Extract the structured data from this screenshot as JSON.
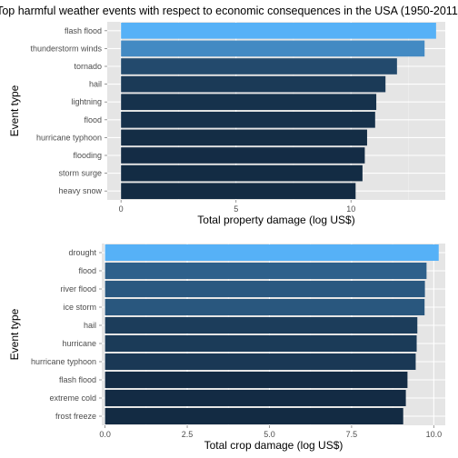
{
  "title": "Top harmful weather events with respect to economic consequences in the USA (1950-2011)",
  "colors": {
    "panel": "#e5e5e5",
    "grid": "#ffffff",
    "bar_low": "#132b43",
    "bar_high": "#56b1f7"
  },
  "chart_data": [
    {
      "type": "bar",
      "orientation": "horizontal",
      "ylabel": "Event type",
      "xlabel": "Total property damage (log US$)",
      "xlim": [
        -0.6,
        14.1
      ],
      "xticks": [
        0,
        5,
        10
      ],
      "xtick_labels": [
        "0",
        "5",
        "10"
      ],
      "categories": [
        "flash flood",
        "thunderstorm winds",
        "tornado",
        "hail",
        "lightning",
        "flood",
        "hurricane typhoon",
        "flooding",
        "storm surge",
        "heavy snow"
      ],
      "values": [
        13.7,
        13.2,
        12.0,
        11.5,
        11.1,
        11.05,
        10.7,
        10.6,
        10.5,
        10.2
      ]
    },
    {
      "type": "bar",
      "orientation": "horizontal",
      "ylabel": "Event type",
      "xlabel": "Total crop damage (log US$)",
      "xlim": [
        -0.1,
        10.35
      ],
      "xticks": [
        0,
        2.5,
        5,
        7.5,
        10
      ],
      "xtick_labels": [
        "0.0",
        "2.5",
        "5.0",
        "7.5",
        "10.0"
      ],
      "categories": [
        "drought",
        "flood",
        "river flood",
        "ice storm",
        "hail",
        "hurricane",
        "hurricane typhoon",
        "flash flood",
        "extreme cold",
        "frost freeze"
      ],
      "values": [
        10.15,
        9.78,
        9.73,
        9.72,
        9.5,
        9.48,
        9.45,
        9.2,
        9.15,
        9.07
      ]
    }
  ]
}
